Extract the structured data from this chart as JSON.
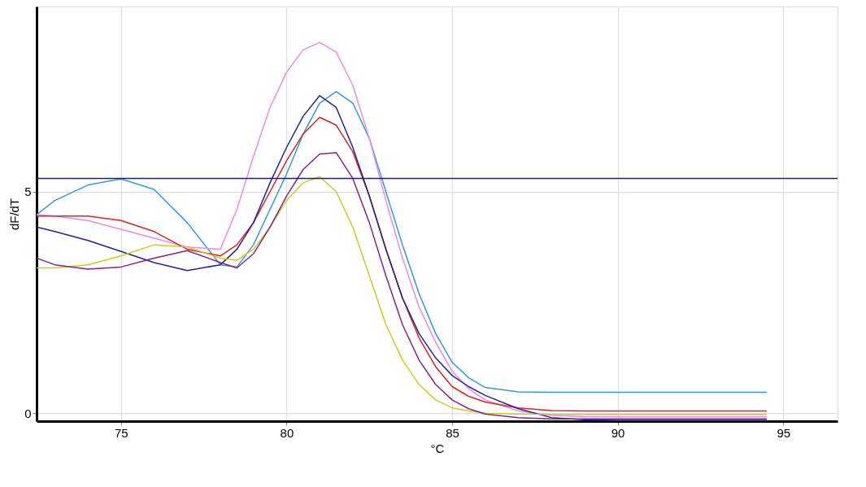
{
  "chart_data": {
    "type": "line",
    "xlabel": "°C",
    "ylabel": "dF/dT",
    "x": [
      72.45,
      73,
      74,
      75,
      76,
      77,
      78,
      78.5,
      79,
      79.5,
      80,
      80.5,
      81,
      81.5,
      82,
      82.5,
      83,
      83.5,
      84,
      84.5,
      85,
      85.5,
      86,
      87,
      88,
      89,
      90,
      94.5
    ],
    "series": [
      {
        "color": "#3399dd",
        "values": [
          4.48,
          4.8,
          5.15,
          5.29,
          5.05,
          4.3,
          3.35,
          3.3,
          3.8,
          4.6,
          5.4,
          6.3,
          7.0,
          7.26,
          7.0,
          6.2,
          5.0,
          3.8,
          2.7,
          1.8,
          1.15,
          0.8,
          0.58,
          0.48,
          0.47,
          0.47,
          0.47,
          0.47
        ]
      },
      {
        "color": "#ee88ee",
        "values": [
          4.48,
          4.45,
          4.35,
          4.15,
          3.95,
          3.75,
          3.7,
          4.6,
          5.8,
          6.9,
          7.7,
          8.2,
          8.37,
          8.15,
          7.4,
          6.2,
          4.8,
          3.5,
          2.4,
          1.6,
          0.95,
          0.55,
          0.3,
          0.05,
          -0.05,
          -0.08,
          -0.08,
          -0.08
        ]
      },
      {
        "color": "#dd2222",
        "values": [
          4.45,
          4.45,
          4.45,
          4.35,
          4.1,
          3.7,
          3.55,
          3.8,
          4.3,
          5.0,
          5.7,
          6.3,
          6.68,
          6.5,
          5.9,
          4.9,
          3.7,
          2.6,
          1.7,
          1.05,
          0.6,
          0.38,
          0.25,
          0.12,
          0.06,
          0.05,
          0.05,
          0.05
        ]
      },
      {
        "color": "#22229a",
        "values": [
          4.2,
          4.1,
          3.9,
          3.65,
          3.4,
          3.22,
          3.35,
          3.7,
          4.3,
          5.2,
          6.0,
          6.7,
          7.17,
          6.9,
          6.0,
          4.9,
          3.7,
          2.6,
          1.8,
          1.25,
          0.85,
          0.6,
          0.4,
          0.1,
          -0.1,
          -0.15,
          -0.16,
          -0.16
        ]
      },
      {
        "color": "#cccc22",
        "values": [
          3.28,
          3.28,
          3.35,
          3.55,
          3.8,
          3.75,
          3.5,
          3.45,
          3.7,
          4.2,
          4.8,
          5.2,
          5.34,
          5.0,
          4.2,
          3.1,
          2.0,
          1.2,
          0.65,
          0.3,
          0.12,
          0.05,
          0.0,
          -0.02,
          -0.03,
          -0.03,
          -0.03,
          -0.03
        ]
      },
      {
        "color": "#882288",
        "values": [
          3.5,
          3.35,
          3.25,
          3.3,
          3.5,
          3.67,
          3.4,
          3.28,
          3.6,
          4.2,
          4.9,
          5.5,
          5.85,
          5.88,
          5.3,
          4.3,
          3.1,
          2.0,
          1.2,
          0.65,
          0.3,
          0.1,
          -0.02,
          -0.1,
          -0.13,
          -0.13,
          -0.13,
          -0.13
        ]
      }
    ],
    "ref_lines": [
      {
        "axis": "y",
        "value": 5.3,
        "color": "#1a1aa0"
      }
    ],
    "xlim": [
      72.45,
      96.64
    ],
    "xticks": [
      75,
      80,
      85,
      90,
      95
    ],
    "ylim": [
      -0.18,
      9.18
    ],
    "yticks": [
      0,
      5
    ],
    "grid": true
  }
}
